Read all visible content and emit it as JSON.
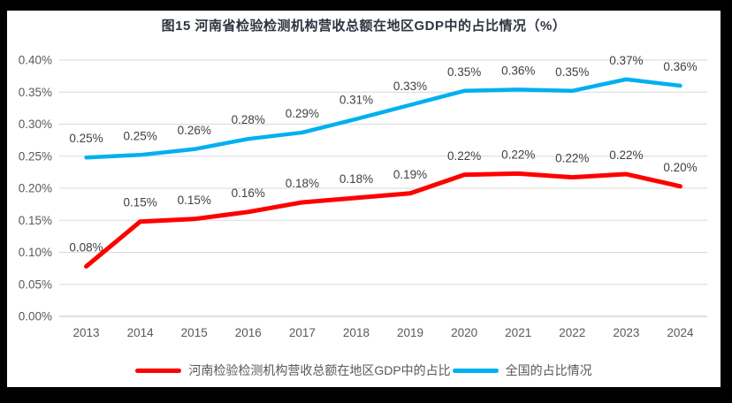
{
  "title": "图15  河南省检验检测机构营收总额在地区GDP中的占比情况（%）",
  "chart_data": {
    "type": "line",
    "title": "图15  河南省检验检测机构营收总额在地区GDP中的占比情况（%）",
    "categories": [
      "2013",
      "2014",
      "2015",
      "2016",
      "2017",
      "2018",
      "2019",
      "2020",
      "2021",
      "2022",
      "2023",
      "2024"
    ],
    "series": [
      {
        "name": "河南检验检测机构营收总额在地区GDP中的占比",
        "color": "#FF0000",
        "values": [
          0.08,
          0.15,
          0.15,
          0.16,
          0.18,
          0.18,
          0.19,
          0.22,
          0.22,
          0.22,
          0.22,
          0.2
        ],
        "labels": [
          "0.08%",
          "0.15%",
          "0.15%",
          "0.16%",
          "0.18%",
          "0.18%",
          "0.19%",
          "0.22%",
          "0.22%",
          "0.22%",
          "0.22%",
          "0.20%"
        ],
        "plot_values": [
          0.078,
          0.148,
          0.152,
          0.163,
          0.178,
          0.185,
          0.192,
          0.221,
          0.223,
          0.217,
          0.222,
          0.203
        ]
      },
      {
        "name": "全国的占比情况",
        "color": "#00B0F0",
        "values": [
          0.25,
          0.25,
          0.26,
          0.28,
          0.29,
          0.31,
          0.33,
          0.35,
          0.36,
          0.35,
          0.37,
          0.36
        ],
        "labels": [
          "0.25%",
          "0.25%",
          "0.26%",
          "0.28%",
          "0.29%",
          "0.31%",
          "0.33%",
          "0.35%",
          "0.36%",
          "0.35%",
          "0.37%",
          "0.36%"
        ],
        "plot_values": [
          0.248,
          0.252,
          0.261,
          0.277,
          0.287,
          0.308,
          0.33,
          0.352,
          0.354,
          0.352,
          0.37,
          0.36
        ]
      }
    ],
    "y_axis": {
      "min": 0,
      "max": 0.4,
      "tick_step": 0.05,
      "tick_labels": [
        "0.00%",
        "0.05%",
        "0.10%",
        "0.15%",
        "0.20%",
        "0.25%",
        "0.30%",
        "0.35%",
        "0.40%"
      ]
    },
    "x_axis_label": "",
    "y_axis_label": "",
    "legend_position": "bottom",
    "grid": "horizontal",
    "colors": {
      "gridline": "#D9D9D9",
      "axis_line": "#BFBFBF",
      "tick_text": "#595959",
      "data_label_text": "#404040",
      "title_text": "#2E3440",
      "legend_text": "#595959",
      "frame": "#000000",
      "plot_background": "#FFFFFF"
    }
  }
}
